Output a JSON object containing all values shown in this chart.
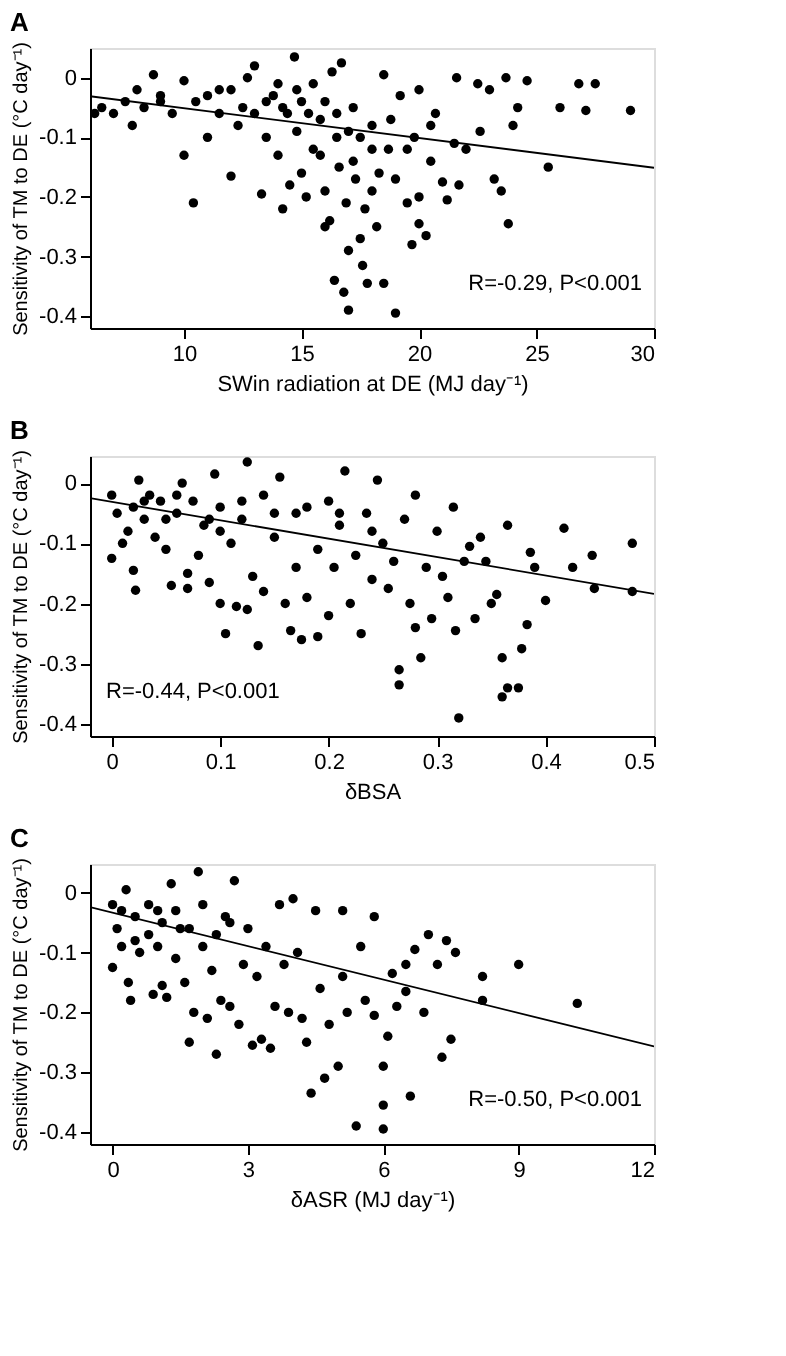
{
  "chart_data": [
    {
      "type": "scatter",
      "title": "A",
      "xlabel": "SWin radiation at DE (MJ day⁻¹)",
      "ylabel": "Sensitivity of TM to DE (°C day⁻¹)",
      "xlim": [
        6,
        30
      ],
      "xticks": [
        10,
        15,
        20,
        25,
        30
      ],
      "ylim": [
        -0.42,
        0.05
      ],
      "yticks": [
        -0.4,
        -0.3,
        -0.2,
        -0.1,
        0
      ],
      "grid": false,
      "annotations": [
        "R=-0.29, P<0.001"
      ],
      "series": [
        {
          "marker": "circle",
          "color": "#000000",
          "x": [
            6.2,
            6.5,
            7,
            7.5,
            7.8,
            8,
            8.3,
            8.7,
            9,
            9.5,
            10,
            10,
            10.4,
            10.5,
            11,
            11,
            11.5,
            12,
            12,
            12.3,
            12.7,
            13,
            13,
            13.3,
            13.5,
            13.8,
            14,
            14,
            14.2,
            14.4,
            14.5,
            14.7,
            14.8,
            15,
            15,
            15.2,
            15.5,
            15.5,
            15.8,
            16,
            16,
            16.2,
            16.3,
            16.4,
            16.5,
            16.6,
            16.7,
            16.8,
            16.9,
            17,
            17,
            17.2,
            17.3,
            17.5,
            17.6,
            17.7,
            17.8,
            18,
            18,
            18.2,
            18.5,
            18.5,
            18.7,
            19,
            19,
            19.2,
            19.5,
            19.7,
            19.8,
            20,
            20,
            20,
            20.3,
            20.5,
            20.7,
            21,
            21.2,
            21.5,
            21.6,
            21.7,
            22,
            22.5,
            22.6,
            23,
            23.2,
            23.5,
            23.7,
            23.8,
            24,
            24.2,
            24.6,
            25.5,
            26,
            26.8,
            27.1,
            27.5,
            29,
            13.5,
            14.2,
            14.8,
            15.3,
            16,
            16.5,
            17,
            17.5,
            18,
            18.8,
            12.5,
            11.5,
            9,
            15.8,
            17.2,
            18.3,
            19.5,
            20.5
          ],
          "values": [
            -0.06,
            -0.05,
            -0.06,
            -0.04,
            -0.08,
            -0.02,
            -0.05,
            0.005,
            -0.04,
            -0.06,
            -0.13,
            -0.005,
            -0.21,
            -0.04,
            -0.1,
            -0.03,
            -0.06,
            -0.165,
            -0.02,
            -0.08,
            0.0,
            0.02,
            -0.06,
            -0.195,
            -0.1,
            -0.03,
            -0.13,
            -0.01,
            -0.22,
            -0.06,
            -0.18,
            0.035,
            -0.09,
            -0.16,
            -0.04,
            -0.2,
            -0.01,
            -0.12,
            -0.07,
            -0.25,
            -0.19,
            -0.24,
            0.01,
            -0.34,
            -0.1,
            -0.15,
            0.025,
            -0.36,
            -0.21,
            -0.29,
            -0.39,
            -0.05,
            -0.17,
            -0.27,
            -0.315,
            -0.22,
            -0.345,
            -0.19,
            -0.08,
            -0.25,
            -0.345,
            0.005,
            -0.12,
            -0.395,
            -0.17,
            -0.03,
            -0.21,
            -0.28,
            -0.1,
            -0.245,
            -0.2,
            -0.02,
            -0.265,
            -0.14,
            -0.06,
            -0.175,
            -0.205,
            -0.11,
            0.0,
            -0.18,
            -0.12,
            -0.01,
            -0.09,
            -0.02,
            -0.17,
            -0.19,
            0.0,
            -0.245,
            -0.08,
            -0.05,
            -0.005,
            -0.15,
            -0.05,
            -0.01,
            -0.055,
            -0.01,
            -0.055,
            -0.04,
            -0.05,
            -0.02,
            -0.06,
            -0.04,
            -0.06,
            -0.09,
            -0.1,
            -0.12,
            -0.07,
            -0.05,
            -0.02,
            -0.03,
            -0.13,
            -0.14,
            -0.16,
            -0.12,
            -0.08
          ]
        },
        {
          "type": "line",
          "color": "#000000",
          "line_style": "solid",
          "x": [
            6,
            30
          ],
          "values": [
            -0.031,
            -0.151
          ]
        }
      ]
    },
    {
      "type": "scatter",
      "title": "B",
      "xlabel": "δBSA",
      "ylabel": "Sensitivity of TM to DE (°C day⁻¹)",
      "xlim": [
        -0.02,
        0.5
      ],
      "xticks": [
        0,
        0.1,
        0.2,
        0.3,
        0.4,
        0.5
      ],
      "ylim": [
        -0.42,
        0.045
      ],
      "yticks": [
        -0.4,
        -0.3,
        -0.2,
        -0.1,
        0
      ],
      "grid": false,
      "annotations": [
        "R=-0.44, P<0.001"
      ],
      "series": [
        {
          "marker": "circle",
          "color": "#000000",
          "x": [
            0,
            0,
            0.005,
            0.01,
            0.015,
            0.02,
            0.02,
            0.022,
            0.025,
            0.03,
            0.035,
            0.04,
            0.045,
            0.05,
            0.055,
            0.06,
            0.065,
            0.07,
            0.07,
            0.075,
            0.08,
            0.085,
            0.09,
            0.095,
            0.1,
            0.1,
            0.105,
            0.11,
            0.115,
            0.12,
            0.125,
            0.125,
            0.13,
            0.135,
            0.14,
            0.14,
            0.15,
            0.155,
            0.16,
            0.165,
            0.17,
            0.17,
            0.175,
            0.18,
            0.19,
            0.19,
            0.2,
            0.2,
            0.205,
            0.21,
            0.215,
            0.22,
            0.225,
            0.23,
            0.235,
            0.24,
            0.245,
            0.25,
            0.255,
            0.26,
            0.265,
            0.265,
            0.27,
            0.275,
            0.28,
            0.28,
            0.285,
            0.29,
            0.295,
            0.3,
            0.305,
            0.31,
            0.315,
            0.317,
            0.32,
            0.325,
            0.33,
            0.335,
            0.34,
            0.345,
            0.35,
            0.355,
            0.36,
            0.36,
            0.365,
            0.365,
            0.375,
            0.378,
            0.383,
            0.386,
            0.39,
            0.4,
            0.417,
            0.425,
            0.443,
            0.445,
            0.48,
            0.48,
            0.03,
            0.06,
            0.09,
            0.12,
            0.15,
            0.18,
            0.21,
            0.24,
            0.1,
            0.05
          ],
          "values": [
            -0.125,
            -0.02,
            -0.05,
            -0.1,
            -0.08,
            -0.04,
            -0.145,
            -0.178,
            0.005,
            -0.06,
            -0.02,
            -0.09,
            -0.03,
            -0.11,
            -0.17,
            -0.05,
            0.0,
            -0.15,
            -0.175,
            -0.03,
            -0.12,
            -0.07,
            -0.165,
            0.015,
            -0.2,
            -0.04,
            -0.25,
            -0.1,
            -0.205,
            -0.06,
            0.035,
            -0.21,
            -0.155,
            -0.27,
            -0.02,
            -0.18,
            -0.09,
            0.01,
            -0.2,
            -0.245,
            -0.14,
            -0.05,
            -0.26,
            -0.19,
            -0.11,
            -0.255,
            -0.22,
            -0.03,
            -0.14,
            -0.07,
            0.02,
            -0.2,
            -0.12,
            -0.25,
            -0.05,
            -0.16,
            0.005,
            -0.1,
            -0.175,
            -0.13,
            -0.31,
            -0.335,
            -0.06,
            -0.2,
            -0.24,
            -0.02,
            -0.29,
            -0.14,
            -0.225,
            -0.08,
            -0.155,
            -0.19,
            -0.04,
            -0.245,
            -0.39,
            -0.13,
            -0.105,
            -0.225,
            -0.09,
            -0.13,
            -0.2,
            -0.185,
            -0.29,
            -0.355,
            -0.34,
            -0.07,
            -0.34,
            -0.275,
            -0.235,
            -0.115,
            -0.14,
            -0.195,
            -0.075,
            -0.14,
            -0.12,
            -0.175,
            -0.1,
            -0.18,
            -0.03,
            -0.02,
            -0.06,
            -0.03,
            -0.05,
            -0.04,
            -0.05,
            -0.08,
            -0.08,
            -0.06
          ]
        },
        {
          "type": "line",
          "color": "#000000",
          "line_style": "solid",
          "x": [
            -0.02,
            0.5
          ],
          "values": [
            -0.025,
            -0.184
          ]
        }
      ]
    },
    {
      "type": "scatter",
      "title": "C",
      "xlabel": "δASR (MJ day⁻¹)",
      "ylabel": "Sensitivity of TM to DE (°C day⁻¹)",
      "xlim": [
        -0.5,
        12
      ],
      "xticks": [
        0,
        3,
        6,
        9,
        12
      ],
      "ylim": [
        -0.42,
        0.048
      ],
      "yticks": [
        -0.4,
        -0.3,
        -0.2,
        -0.1,
        0
      ],
      "grid": false,
      "annotations": [
        "R=-0.50, P<0.001"
      ],
      "series": [
        {
          "marker": "circle",
          "color": "#000000",
          "x": [
            0,
            0,
            0.1,
            0.2,
            0.3,
            0.35,
            0.4,
            0.5,
            0.6,
            0.8,
            0.9,
            1,
            1.1,
            1.2,
            1.3,
            1.4,
            1.5,
            1.6,
            1.7,
            1.8,
            1.9,
            2,
            2.1,
            2.2,
            2.3,
            2.4,
            2.5,
            2.6,
            2.7,
            2.8,
            2.9,
            3,
            3.1,
            3.2,
            3.3,
            3.4,
            3.5,
            3.6,
            3.7,
            3.8,
            3.9,
            4,
            4.1,
            4.2,
            4.3,
            4.4,
            4.5,
            4.6,
            4.7,
            4.8,
            5,
            5.1,
            5.1,
            5.2,
            5.4,
            5.5,
            5.6,
            5.8,
            5.8,
            6,
            6,
            6,
            6.1,
            6.2,
            6.3,
            6.5,
            6.5,
            6.6,
            6.7,
            6.9,
            7,
            7.2,
            7.3,
            7.4,
            7.5,
            7.6,
            8.2,
            8.2,
            9,
            10.3,
            0.2,
            0.5,
            0.8,
            1.1,
            1.4,
            1.7,
            2,
            2.3,
            2.6,
            1
          ],
          "values": [
            -0.125,
            -0.02,
            -0.06,
            -0.09,
            0.005,
            -0.15,
            -0.18,
            -0.04,
            -0.1,
            -0.07,
            -0.17,
            -0.03,
            -0.155,
            -0.175,
            0.015,
            -0.11,
            -0.06,
            -0.15,
            -0.25,
            -0.2,
            0.035,
            -0.09,
            -0.21,
            -0.13,
            -0.27,
            -0.18,
            -0.04,
            -0.19,
            0.02,
            -0.22,
            -0.12,
            -0.06,
            -0.255,
            -0.14,
            -0.245,
            -0.09,
            -0.26,
            -0.19,
            -0.02,
            -0.12,
            -0.2,
            -0.01,
            -0.1,
            -0.21,
            -0.25,
            -0.335,
            -0.03,
            -0.16,
            -0.31,
            -0.22,
            -0.29,
            -0.03,
            -0.14,
            -0.2,
            -0.39,
            -0.09,
            -0.18,
            -0.04,
            -0.205,
            -0.355,
            -0.395,
            -0.29,
            -0.24,
            -0.135,
            -0.19,
            -0.12,
            -0.165,
            -0.34,
            -0.095,
            -0.2,
            -0.07,
            -0.12,
            -0.275,
            -0.08,
            -0.245,
            -0.1,
            -0.14,
            -0.18,
            -0.12,
            -0.185,
            -0.03,
            -0.08,
            -0.02,
            -0.05,
            -0.03,
            -0.06,
            -0.02,
            -0.07,
            -0.05,
            -0.09
          ]
        },
        {
          "type": "line",
          "color": "#000000",
          "line_style": "solid",
          "x": [
            -0.5,
            12
          ],
          "values": [
            -0.024,
            -0.257
          ]
        }
      ]
    }
  ]
}
